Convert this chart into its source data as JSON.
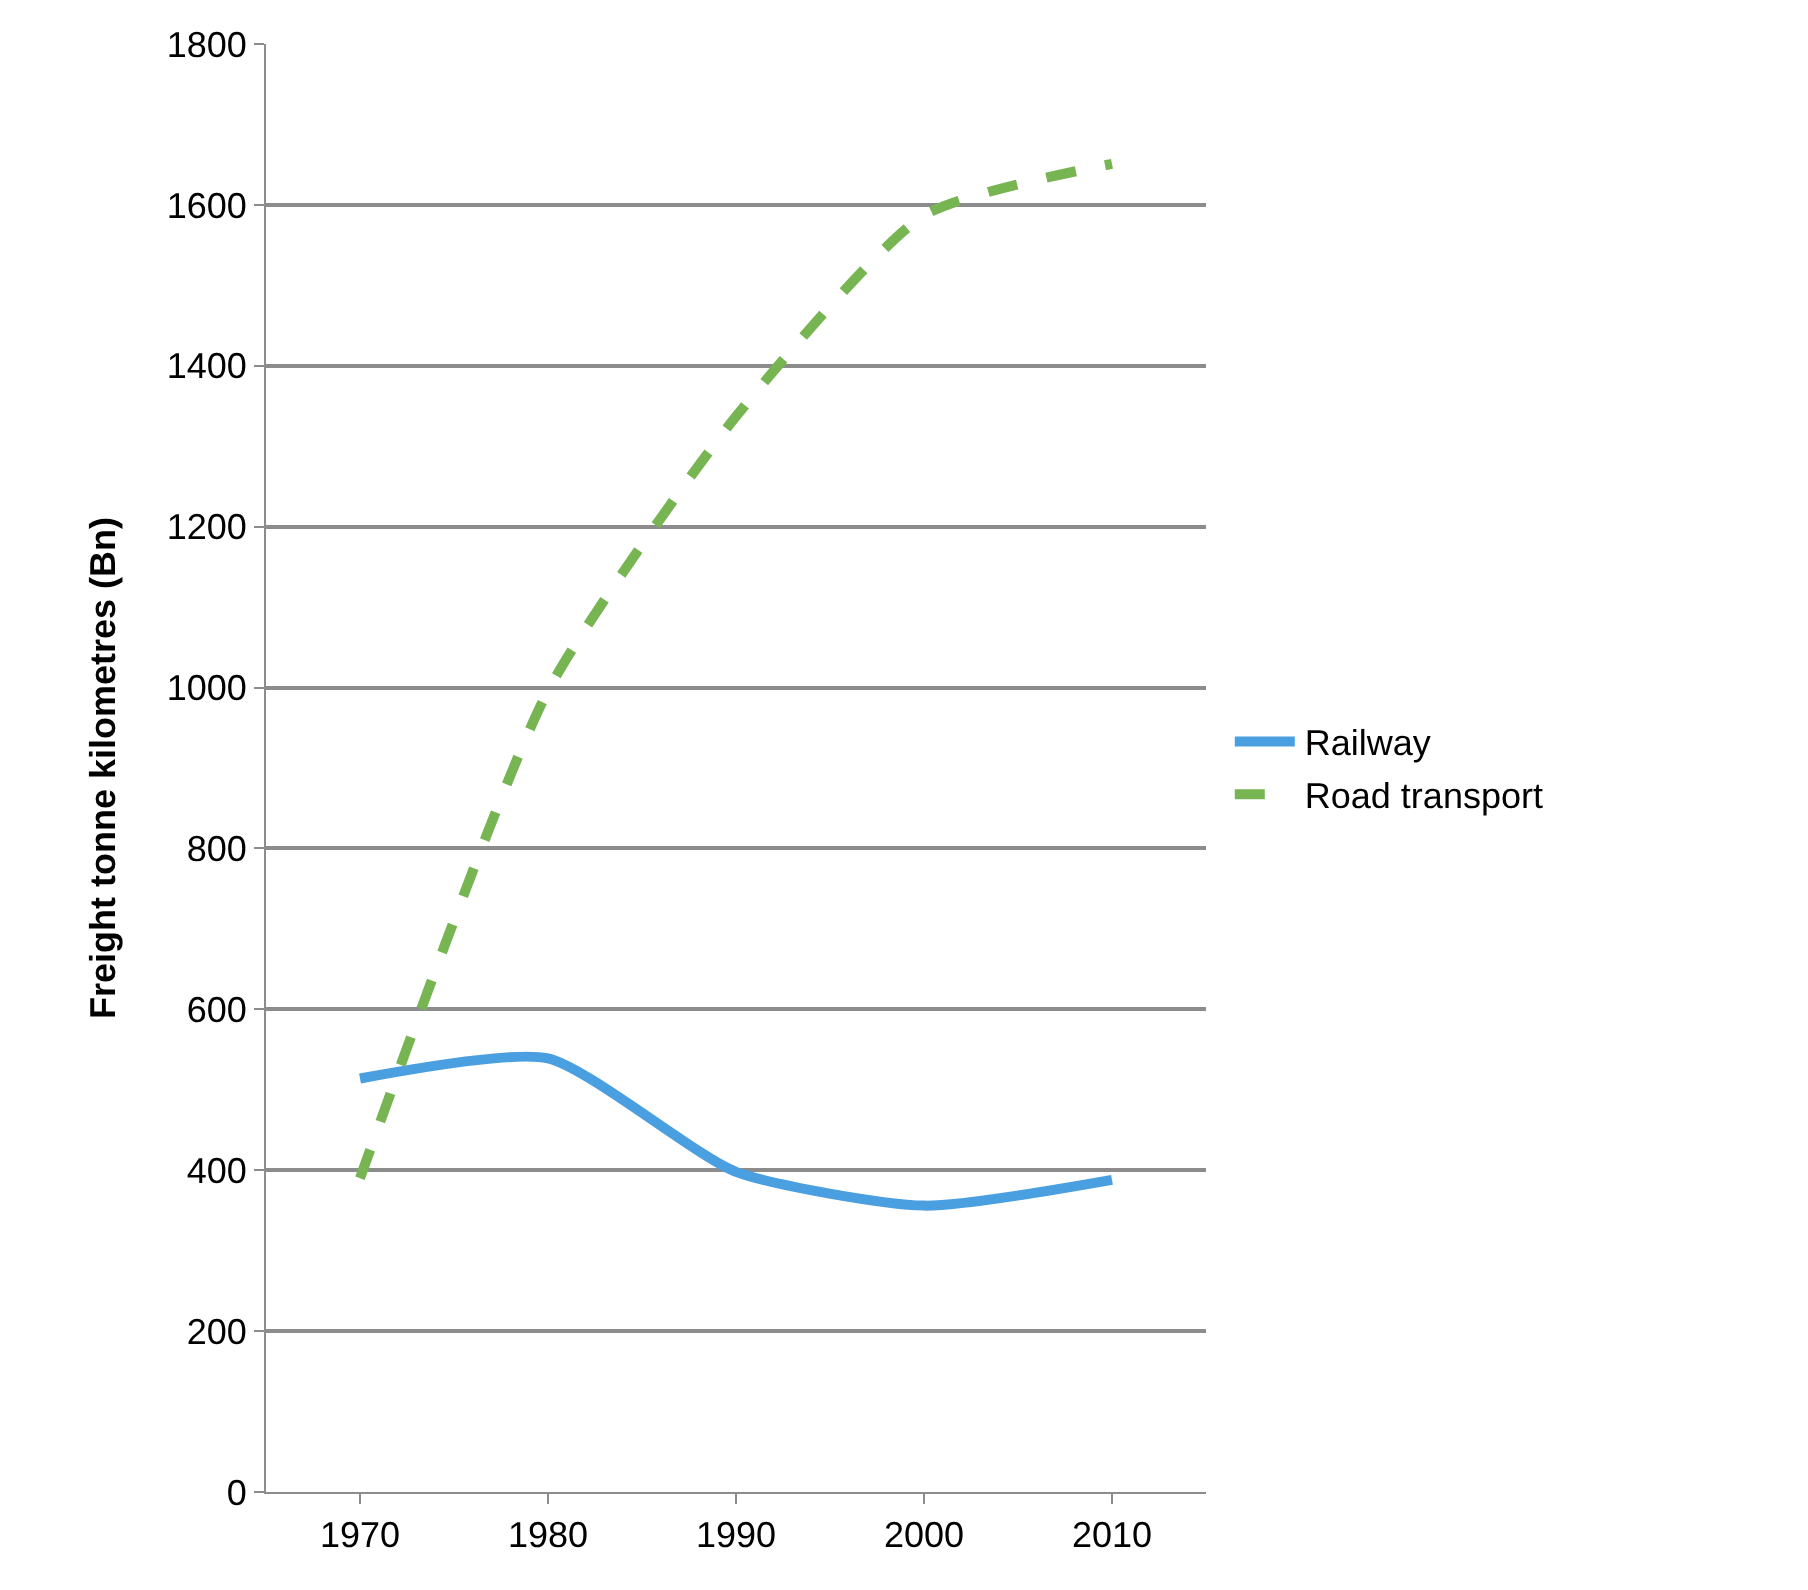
{
  "chart_data": {
    "type": "line",
    "ylabel": "Freight tonne kilometres (Bn)",
    "categories": [
      "1970",
      "1980",
      "1990",
      "2000",
      "2010"
    ],
    "series": [
      {
        "name": "Railway",
        "color": "#4a9fe0",
        "values": [
          514,
          539,
          398,
          356,
          388
        ],
        "line_style": "solid"
      },
      {
        "name": "Road transport",
        "color": "#77b553",
        "values": [
          390,
          996,
          1337,
          1587,
          1651
        ],
        "line_style": "dashed"
      }
    ],
    "ylim": [
      0,
      1800
    ],
    "yticks": [
      0,
      200,
      400,
      600,
      800,
      1000,
      1200,
      1400,
      1600,
      1800
    ],
    "grid": "y",
    "legend": "right",
    "marker": "none"
  }
}
